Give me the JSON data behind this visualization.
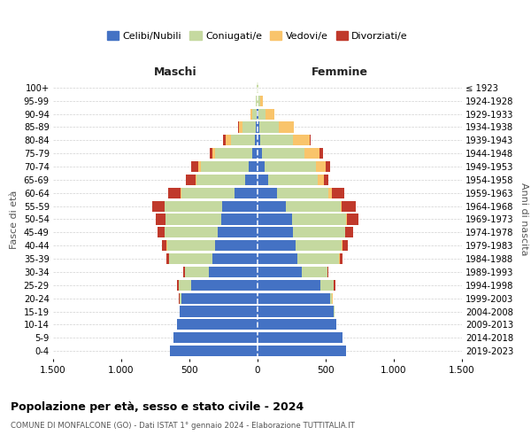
{
  "age_groups_bottom_to_top": [
    "0-4",
    "5-9",
    "10-14",
    "15-19",
    "20-24",
    "25-29",
    "30-34",
    "35-39",
    "40-44",
    "45-49",
    "50-54",
    "55-59",
    "60-64",
    "65-69",
    "70-74",
    "75-79",
    "80-84",
    "85-89",
    "90-94",
    "95-99",
    "100+"
  ],
  "birth_years_bottom_to_top": [
    "2019-2023",
    "2014-2018",
    "2009-2013",
    "2004-2008",
    "1999-2003",
    "1994-1998",
    "1989-1993",
    "1984-1988",
    "1979-1983",
    "1974-1978",
    "1969-1973",
    "1964-1968",
    "1959-1963",
    "1954-1958",
    "1949-1953",
    "1944-1948",
    "1939-1943",
    "1934-1938",
    "1929-1933",
    "1924-1928",
    "≤ 1923"
  ],
  "colors": {
    "celibe": "#4472c4",
    "coniugato": "#c5d9a0",
    "vedovo": "#f9c46b",
    "divorziato": "#c0392b"
  },
  "maschi_celibe": [
    640,
    620,
    590,
    570,
    560,
    490,
    360,
    330,
    310,
    290,
    265,
    260,
    170,
    90,
    65,
    40,
    18,
    10,
    5,
    3,
    2
  ],
  "maschi_coniugato": [
    0,
    0,
    1,
    3,
    12,
    90,
    175,
    320,
    355,
    390,
    410,
    420,
    390,
    360,
    350,
    270,
    180,
    100,
    35,
    8,
    2
  ],
  "maschi_vedovo": [
    0,
    0,
    0,
    0,
    0,
    0,
    0,
    1,
    1,
    2,
    2,
    4,
    4,
    4,
    18,
    18,
    35,
    25,
    15,
    3,
    0
  ],
  "maschi_divorziato": [
    0,
    0,
    0,
    0,
    4,
    8,
    8,
    18,
    35,
    55,
    72,
    90,
    90,
    70,
    55,
    25,
    18,
    8,
    0,
    0,
    0
  ],
  "femmine_nubile": [
    650,
    625,
    575,
    560,
    530,
    460,
    325,
    295,
    280,
    260,
    250,
    210,
    140,
    80,
    55,
    35,
    20,
    15,
    8,
    3,
    2
  ],
  "femmine_coniugata": [
    0,
    0,
    1,
    4,
    18,
    100,
    185,
    305,
    340,
    380,
    400,
    400,
    380,
    360,
    375,
    310,
    240,
    140,
    50,
    15,
    2
  ],
  "femmine_vedova": [
    0,
    0,
    0,
    0,
    1,
    1,
    2,
    3,
    5,
    5,
    8,
    8,
    25,
    45,
    72,
    110,
    120,
    110,
    65,
    18,
    2
  ],
  "femmine_divorziata": [
    0,
    0,
    0,
    0,
    4,
    8,
    8,
    18,
    35,
    55,
    82,
    100,
    90,
    35,
    28,
    25,
    8,
    4,
    0,
    0,
    0
  ],
  "xlim": 1500,
  "xlabel_left": "Maschi",
  "xlabel_right": "Femmine",
  "ylabel_left": "Fasce di età",
  "ylabel_right": "Anni di nascita",
  "title": "Popolazione per età, sesso e stato civile - 2024",
  "subtitle": "COMUNE DI MONFALCONE (GO) - Dati ISTAT 1° gennaio 2024 - Elaborazione TUTTITALIA.IT",
  "legend_labels": [
    "Celibi/Nubili",
    "Coniugati/e",
    "Vedovi/e",
    "Divorziati/e"
  ],
  "grid_color": "#cccccc"
}
